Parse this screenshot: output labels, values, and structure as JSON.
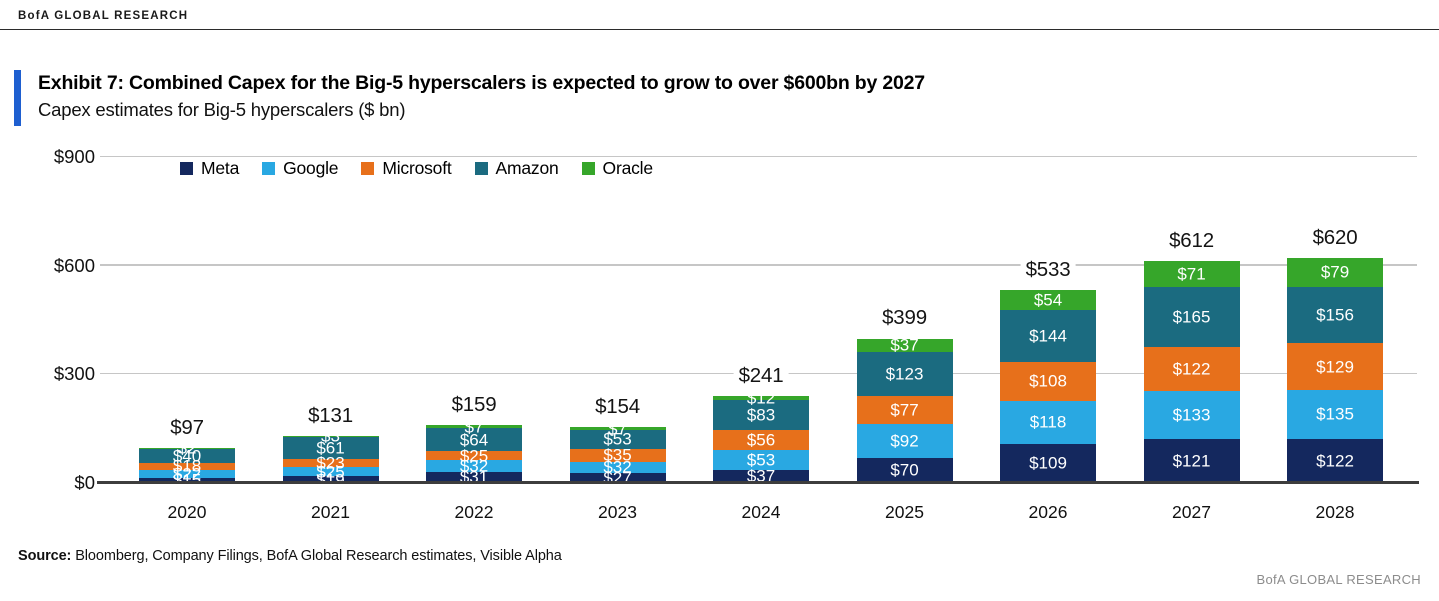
{
  "header": {
    "brand": "BofA GLOBAL RESEARCH"
  },
  "exhibit": {
    "title": "Exhibit 7: Combined Capex for the Big-5 hyperscalers is expected to grow to over $600bn by 2027",
    "subtitle": "Capex estimates for Big-5 hyperscalers ($ bn)",
    "accent_color": "#1e5fd0"
  },
  "chart_data": {
    "type": "bar",
    "stacked": true,
    "title": "Capex estimates for Big-5 hyperscalers ($ bn)",
    "categories": [
      "2020",
      "2021",
      "2022",
      "2023",
      "2024",
      "2025",
      "2026",
      "2027",
      "2028"
    ],
    "series": [
      {
        "name": "Meta",
        "color": "#14285e",
        "values": [
          15,
          19,
          31,
          27,
          37,
          70,
          109,
          121,
          122
        ]
      },
      {
        "name": "Google",
        "color": "#29a8e2",
        "values": [
          22,
          25,
          32,
          32,
          53,
          92,
          118,
          133,
          135
        ]
      },
      {
        "name": "Microsoft",
        "color": "#e7701b",
        "values": [
          18,
          23,
          25,
          35,
          56,
          77,
          108,
          122,
          129
        ]
      },
      {
        "name": "Amazon",
        "color": "#1b6b80",
        "values": [
          40,
          61,
          64,
          53,
          83,
          123,
          144,
          165,
          156
        ]
      },
      {
        "name": "Oracle",
        "color": "#36a62a",
        "values": [
          2,
          3,
          7,
          7,
          12,
          37,
          54,
          71,
          79
        ]
      }
    ],
    "totals": [
      "$97",
      "$131",
      "$159",
      "$154",
      "$241",
      "$399",
      "$533",
      "$612",
      "$620"
    ],
    "y_ticks": [
      "$0",
      "$300",
      "$600",
      "$900"
    ],
    "ylim": [
      0,
      900
    ],
    "grid": true,
    "legend_position": "top",
    "value_prefix": "$"
  },
  "source": {
    "label": "Source:",
    "text": " Bloomberg, Company Filings, BofA Global Research estimates, Visible Alpha"
  },
  "footer": {
    "brand": "BofA GLOBAL RESEARCH"
  }
}
